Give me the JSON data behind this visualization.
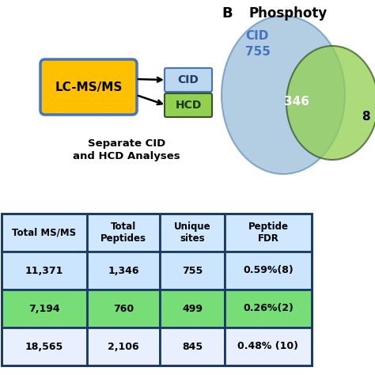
{
  "title": "B",
  "phospho_title": "Phosphoty",
  "cid_label": "CID",
  "hcd_label": "HCD",
  "lcms_label": "LC-MS/MS",
  "cid_only": "755",
  "overlap": "346",
  "hcd_number": "8",
  "separate_text1": "Separate CID",
  "separate_text2": "and HCD Analyses",
  "table_headers": [
    "Total MS/MS",
    "Total\nPeptides",
    "Unique\nsites",
    "Peptide\nFDR"
  ],
  "table_row1": [
    "11,371",
    "1,346",
    "755",
    "0.59%(8)"
  ],
  "table_row2": [
    "7,194",
    "760",
    "499",
    "0.26%(2)"
  ],
  "table_row3": [
    "18,565",
    "2,106",
    "845",
    "0.48% (10)"
  ],
  "row1_color": "#cce5ff",
  "row2_color": "#77dd77",
  "row3_color": "#e8f0ff",
  "header_color": "#d0e8ff",
  "table_border_color": "#1a3a6b",
  "lcms_fill": "#ffc000",
  "lcms_border": "#4472c4",
  "cid_box_fill": "#bdd7ee",
  "cid_box_border": "#4472c4",
  "hcd_box_fill": "#92d050",
  "hcd_box_border": "#375623",
  "venn_cid_color": "#8ab4d4",
  "venn_hcd_color": "#92d050",
  "cid_text_color": "#4472c4",
  "bg_color": "#ffffff"
}
